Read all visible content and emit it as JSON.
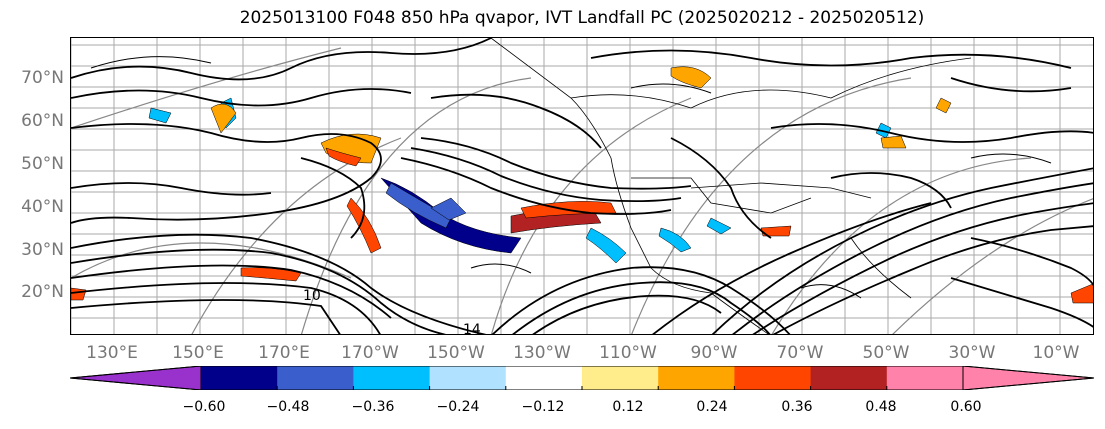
{
  "title": "2025013100 F048 850 hPa qvapor, IVT Landfall PC (2025020212 - 2025020512)",
  "map": {
    "lat_labels": [
      "70°N",
      "60°N",
      "50°N",
      "40°N",
      "30°N",
      "20°N"
    ],
    "lon_labels": [
      "130°E",
      "150°E",
      "170°E",
      "170°W",
      "150°W",
      "130°W",
      "110°W",
      "90°W",
      "70°W",
      "50°W",
      "30°W",
      "10°W"
    ],
    "contour_labels": [
      "10",
      "14"
    ],
    "grid": true
  },
  "colorbar": {
    "tick_labels": [
      "−0.60",
      "−0.48",
      "−0.36",
      "−0.24",
      "−0.12",
      "0.12",
      "0.24",
      "0.36",
      "0.48",
      "0.60"
    ],
    "bounds": [
      -0.6,
      -0.48,
      -0.36,
      -0.24,
      -0.12,
      0.12,
      0.24,
      0.36,
      0.48,
      0.6
    ],
    "extend": "both",
    "colors": [
      "#9932cc",
      "#00008b",
      "#3a5fcd",
      "#00bfff",
      "#b0e2ff",
      "#ffffff",
      "#ffec8b",
      "#ffa500",
      "#ff4500",
      "#b22222",
      "#ff82ab",
      "#ff82ab"
    ]
  }
}
